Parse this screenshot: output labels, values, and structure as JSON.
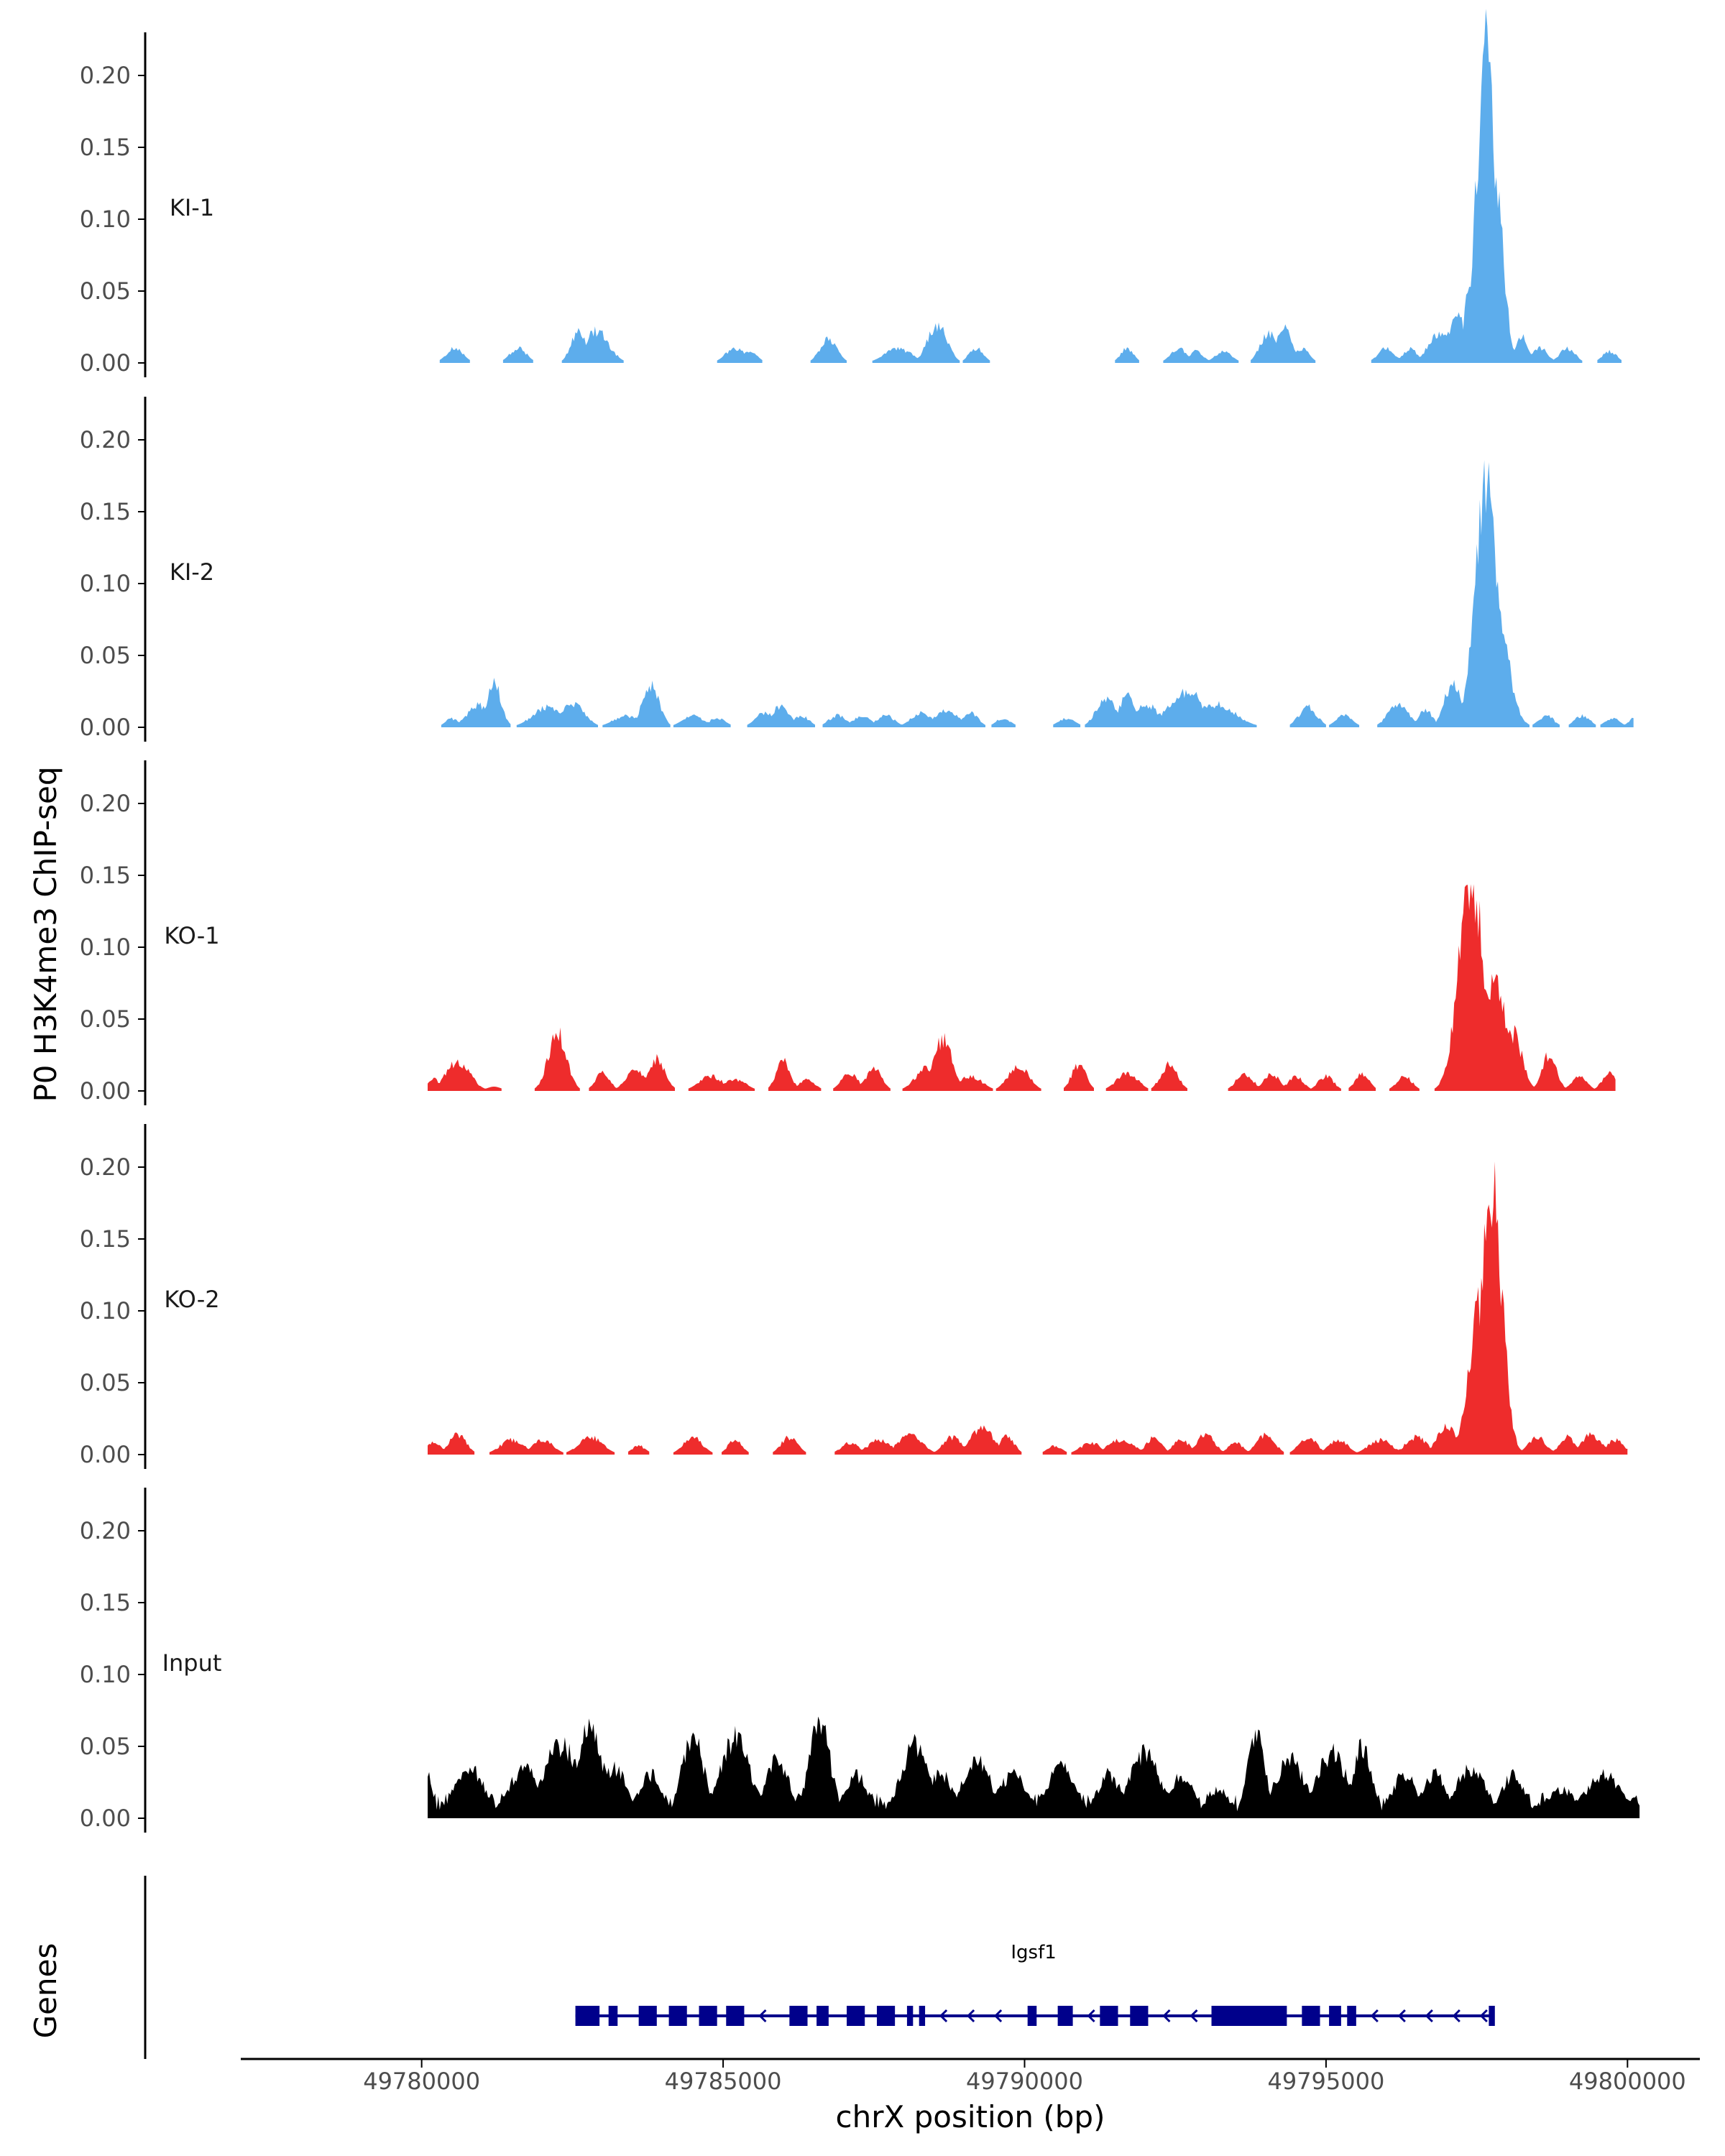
{
  "chart_data": {
    "type": "area",
    "title": "",
    "ylabel": "P0 H3K4me3 ChIP-seq",
    "xlabel": "chrX position (bp)",
    "gene_track_label": "Genes",
    "xlim": [
      49777000,
      49801200
    ],
    "ylim": [
      0,
      0.23
    ],
    "y_ticks": [
      0.0,
      0.05,
      0.1,
      0.15,
      0.2
    ],
    "y_tick_labels": [
      "0.00",
      "0.05",
      "0.10",
      "0.15",
      "0.20"
    ],
    "x_ticks": [
      49780000,
      49785000,
      49790000,
      49795000,
      49800000
    ],
    "x_tick_labels": [
      "49780000",
      "49785000",
      "49790000",
      "49795000",
      "49800000"
    ],
    "colors": {
      "KI": "#5DADEC",
      "KO": "#EE2C2C",
      "Input": "#000000",
      "gene": "#00008B",
      "axis": "#000000"
    },
    "tracks": [
      {
        "name": "KI-1",
        "color": "#5DADEC",
        "x_start": 49780200,
        "x_end": 49800100,
        "peaks": [
          [
            49780550,
            0.01,
            140
          ],
          [
            49781600,
            0.01,
            140
          ],
          [
            49782600,
            0.022,
            120
          ],
          [
            49782900,
            0.022,
            200
          ],
          [
            49785200,
            0.01,
            160
          ],
          [
            49785450,
            0.008,
            120
          ],
          [
            49786750,
            0.017,
            140
          ],
          [
            49787900,
            0.01,
            220
          ],
          [
            49788550,
            0.026,
            160
          ],
          [
            49789200,
            0.01,
            120
          ],
          [
            49791700,
            0.01,
            110
          ],
          [
            49792550,
            0.01,
            130
          ],
          [
            49792850,
            0.008,
            120
          ],
          [
            49793300,
            0.008,
            140
          ],
          [
            49794050,
            0.02,
            140
          ],
          [
            49794300,
            0.024,
            130
          ],
          [
            49794600,
            0.01,
            120
          ],
          [
            49796000,
            0.01,
            140
          ],
          [
            49796400,
            0.01,
            120
          ],
          [
            49796900,
            0.02,
            200
          ],
          [
            49797200,
            0.03,
            180
          ],
          [
            49797500,
            0.08,
            150
          ],
          [
            49797650,
            0.22,
            150
          ],
          [
            49797800,
            0.12,
            140
          ],
          [
            49798250,
            0.02,
            100
          ],
          [
            49798550,
            0.01,
            130
          ],
          [
            49799000,
            0.01,
            130
          ],
          [
            49799700,
            0.008,
            120
          ]
        ]
      },
      {
        "name": "KI-2",
        "color": "#5DADEC",
        "x_start": 49780200,
        "x_end": 49800100,
        "peaks": [
          [
            49780500,
            0.006,
            110
          ],
          [
            49780950,
            0.015,
            200
          ],
          [
            49781200,
            0.03,
            120
          ],
          [
            49782100,
            0.014,
            250
          ],
          [
            49782500,
            0.016,
            200
          ],
          [
            49783400,
            0.008,
            220
          ],
          [
            49783800,
            0.028,
            140
          ],
          [
            49784500,
            0.008,
            180
          ],
          [
            49784900,
            0.006,
            150
          ],
          [
            49785700,
            0.01,
            160
          ],
          [
            49785950,
            0.014,
            160
          ],
          [
            49786300,
            0.008,
            130
          ],
          [
            49786900,
            0.008,
            150
          ],
          [
            49787300,
            0.008,
            150
          ],
          [
            49787700,
            0.008,
            150
          ],
          [
            49788300,
            0.01,
            180
          ],
          [
            49788700,
            0.012,
            200
          ],
          [
            49789100,
            0.01,
            130
          ],
          [
            49789650,
            0.006,
            130
          ],
          [
            49790700,
            0.006,
            150
          ],
          [
            49791350,
            0.02,
            160
          ],
          [
            49791700,
            0.022,
            130
          ],
          [
            49792000,
            0.016,
            220
          ],
          [
            49792450,
            0.016,
            150
          ],
          [
            49792700,
            0.025,
            250
          ],
          [
            49793200,
            0.016,
            300
          ],
          [
            49794700,
            0.014,
            150
          ],
          [
            49795300,
            0.008,
            140
          ],
          [
            49796200,
            0.016,
            170
          ],
          [
            49796650,
            0.012,
            120
          ],
          [
            49797100,
            0.03,
            140
          ],
          [
            49797650,
            0.17,
            180
          ],
          [
            49797750,
            0.1,
            220
          ],
          [
            49798650,
            0.008,
            130
          ],
          [
            49799250,
            0.008,
            130
          ],
          [
            49799750,
            0.006,
            130
          ],
          [
            49800100,
            0.006,
            90
          ]
        ]
      },
      {
        "name": "KO-1",
        "color": "#EE2C2C",
        "x_start": 49780100,
        "x_end": 49799800,
        "peaks": [
          [
            49780200,
            0.008,
            120
          ],
          [
            49780600,
            0.02,
            200
          ],
          [
            49781200,
            0.003,
            120
          ],
          [
            49782250,
            0.04,
            150
          ],
          [
            49783000,
            0.012,
            120
          ],
          [
            49783550,
            0.014,
            160
          ],
          [
            49783900,
            0.022,
            140
          ],
          [
            49784800,
            0.01,
            200
          ],
          [
            49785200,
            0.008,
            180
          ],
          [
            49786000,
            0.02,
            120
          ],
          [
            49786400,
            0.008,
            130
          ],
          [
            49787100,
            0.012,
            140
          ],
          [
            49787500,
            0.016,
            130
          ],
          [
            49788400,
            0.016,
            200
          ],
          [
            49788650,
            0.036,
            150
          ],
          [
            49789100,
            0.01,
            200
          ],
          [
            49789900,
            0.018,
            170
          ],
          [
            49790900,
            0.018,
            120
          ],
          [
            49791700,
            0.012,
            180
          ],
          [
            49792400,
            0.018,
            140
          ],
          [
            49793650,
            0.012,
            140
          ],
          [
            49794100,
            0.012,
            130
          ],
          [
            49794500,
            0.01,
            130
          ],
          [
            49795000,
            0.01,
            130
          ],
          [
            49795600,
            0.012,
            120
          ],
          [
            49796300,
            0.01,
            130
          ],
          [
            49797400,
            0.15,
            200
          ],
          [
            49797800,
            0.08,
            170
          ],
          [
            49798100,
            0.04,
            150
          ],
          [
            49798700,
            0.025,
            120
          ],
          [
            49799200,
            0.01,
            130
          ],
          [
            49799700,
            0.012,
            120
          ]
        ]
      },
      {
        "name": "KO-2",
        "color": "#EE2C2C",
        "x_start": 49780100,
        "x_end": 49800000,
        "peaks": [
          [
            49780200,
            0.008,
            130
          ],
          [
            49780600,
            0.014,
            140
          ],
          [
            49781500,
            0.01,
            200
          ],
          [
            49782000,
            0.01,
            180
          ],
          [
            49782800,
            0.012,
            200
          ],
          [
            49783600,
            0.006,
            120
          ],
          [
            49784500,
            0.012,
            160
          ],
          [
            49785200,
            0.01,
            120
          ],
          [
            49786100,
            0.012,
            140
          ],
          [
            49787100,
            0.008,
            150
          ],
          [
            49787600,
            0.01,
            200
          ],
          [
            49788100,
            0.014,
            200
          ],
          [
            49788800,
            0.012,
            150
          ],
          [
            49789300,
            0.018,
            200
          ],
          [
            49789700,
            0.012,
            130
          ],
          [
            49790500,
            0.006,
            130
          ],
          [
            49791100,
            0.008,
            180
          ],
          [
            49791600,
            0.01,
            220
          ],
          [
            49792150,
            0.012,
            130
          ],
          [
            49792600,
            0.01,
            140
          ],
          [
            49793000,
            0.014,
            150
          ],
          [
            49793500,
            0.008,
            130
          ],
          [
            49794000,
            0.014,
            150
          ],
          [
            49794700,
            0.012,
            150
          ],
          [
            49795200,
            0.01,
            160
          ],
          [
            49795900,
            0.01,
            200
          ],
          [
            49796500,
            0.012,
            180
          ],
          [
            49797000,
            0.02,
            160
          ],
          [
            49797750,
            0.185,
            170
          ],
          [
            49797550,
            0.1,
            180
          ],
          [
            49798500,
            0.012,
            150
          ],
          [
            49799000,
            0.012,
            130
          ],
          [
            49799400,
            0.014,
            160
          ],
          [
            49799800,
            0.01,
            150
          ]
        ]
      },
      {
        "name": "Input",
        "color": "#000000",
        "x_start": 49780100,
        "x_end": 49800200,
        "baseline": 0.012,
        "peaks": [
          [
            49780100,
            0.03,
            80
          ],
          [
            49780800,
            0.035,
            250
          ],
          [
            49781700,
            0.035,
            250
          ],
          [
            49782300,
            0.05,
            300
          ],
          [
            49782800,
            0.065,
            200
          ],
          [
            49783200,
            0.035,
            200
          ],
          [
            49783800,
            0.03,
            200
          ],
          [
            49784500,
            0.058,
            180
          ],
          [
            49785200,
            0.055,
            250
          ],
          [
            49785900,
            0.04,
            200
          ],
          [
            49786600,
            0.065,
            180
          ],
          [
            49787200,
            0.03,
            200
          ],
          [
            49788200,
            0.05,
            250
          ],
          [
            49788600,
            0.032,
            200
          ],
          [
            49789200,
            0.04,
            250
          ],
          [
            49789800,
            0.03,
            250
          ],
          [
            49790600,
            0.035,
            250
          ],
          [
            49791400,
            0.03,
            200
          ],
          [
            49792000,
            0.045,
            250
          ],
          [
            49792600,
            0.03,
            200
          ],
          [
            49793200,
            0.02,
            200
          ],
          [
            49793850,
            0.058,
            150
          ],
          [
            49794400,
            0.04,
            250
          ],
          [
            49795100,
            0.045,
            250
          ],
          [
            49795600,
            0.05,
            150
          ],
          [
            49796300,
            0.03,
            200
          ],
          [
            49796800,
            0.03,
            200
          ],
          [
            49797400,
            0.035,
            250
          ],
          [
            49798100,
            0.03,
            200
          ],
          [
            49798900,
            0.02,
            250
          ],
          [
            49799600,
            0.03,
            300
          ],
          [
            49800100,
            0.015,
            100
          ]
        ]
      }
    ],
    "gene": {
      "name": "Igsf1",
      "strand": "-",
      "start": 49782550,
      "end": 49797750,
      "exons": [
        [
          49782550,
          49782950
        ],
        [
          49783100,
          49783250
        ],
        [
          49783600,
          49783900
        ],
        [
          49784100,
          49784400
        ],
        [
          49784600,
          49784900
        ],
        [
          49785050,
          49785350
        ],
        [
          49786100,
          49786400
        ],
        [
          49786550,
          49786750
        ],
        [
          49787050,
          49787350
        ],
        [
          49787550,
          49787850
        ],
        [
          49788050,
          49788150
        ],
        [
          49788250,
          49788350
        ],
        [
          49790050,
          49790200
        ],
        [
          49790550,
          49790800
        ],
        [
          49791250,
          49791550
        ],
        [
          49791750,
          49792050
        ],
        [
          49793100,
          49794350
        ],
        [
          49794600,
          49794900
        ],
        [
          49795050,
          49795250
        ],
        [
          49795350,
          49795500
        ],
        [
          49797700,
          49797800
        ]
      ]
    }
  }
}
